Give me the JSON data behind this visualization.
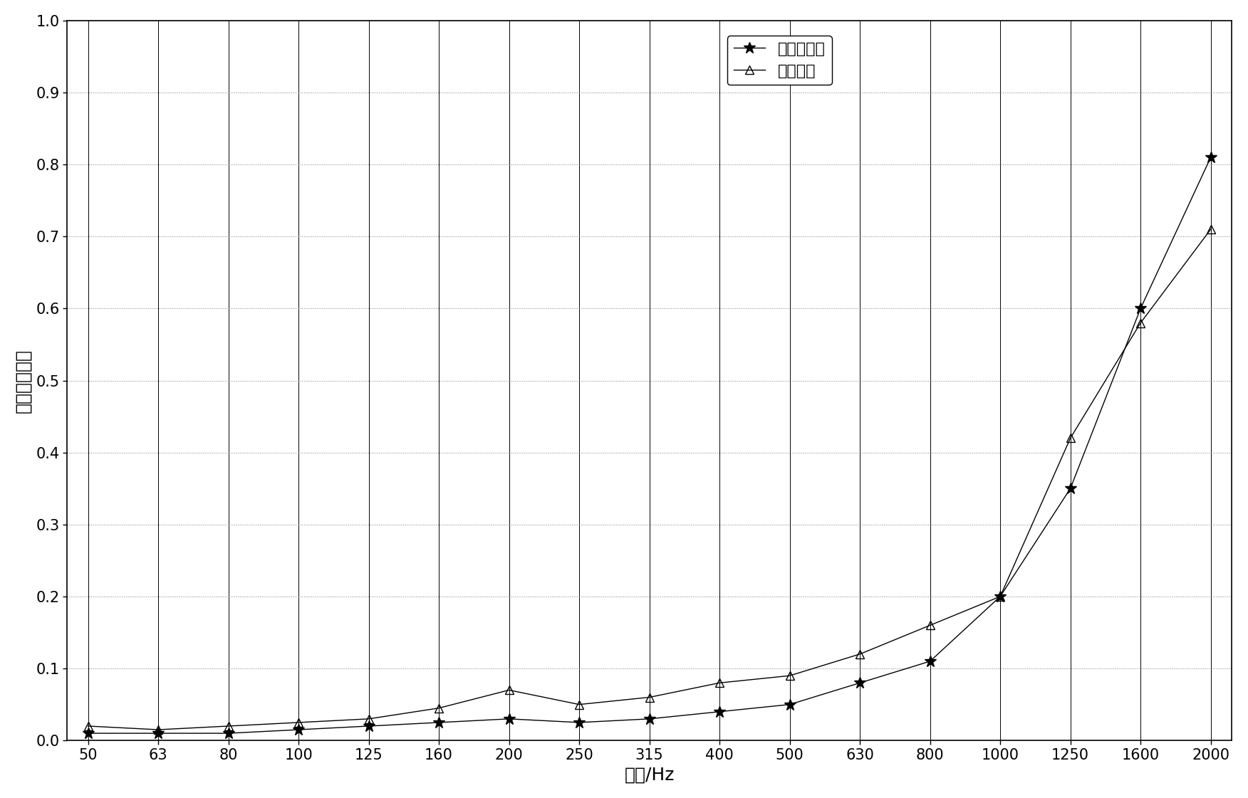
{
  "x_labels": [
    50,
    63,
    80,
    100,
    125,
    160,
    200,
    250,
    315,
    400,
    500,
    630,
    800,
    1000,
    1250,
    1600,
    2000
  ],
  "series1_name": "本发明结果",
  "series1_y": [
    0.01,
    0.01,
    0.01,
    0.015,
    0.02,
    0.025,
    0.03,
    0.025,
    0.03,
    0.04,
    0.05,
    0.08,
    0.11,
    0.2,
    0.35,
    0.6,
    0.81
  ],
  "series2_name": "测量实验",
  "series2_y": [
    0.02,
    0.015,
    0.02,
    0.025,
    0.03,
    0.045,
    0.07,
    0.05,
    0.06,
    0.08,
    0.09,
    0.12,
    0.16,
    0.2,
    0.42,
    0.58,
    0.71
  ],
  "xlabel": "频率/Hz",
  "ylabel": "半均散射系数",
  "ylim": [
    0,
    1
  ],
  "yticks": [
    0,
    0.1,
    0.2,
    0.3,
    0.4,
    0.5,
    0.6,
    0.7,
    0.8,
    0.9,
    1
  ],
  "line_color": "#000000",
  "figure_facecolor": "#ffffff",
  "axes_facecolor": "#ffffff"
}
